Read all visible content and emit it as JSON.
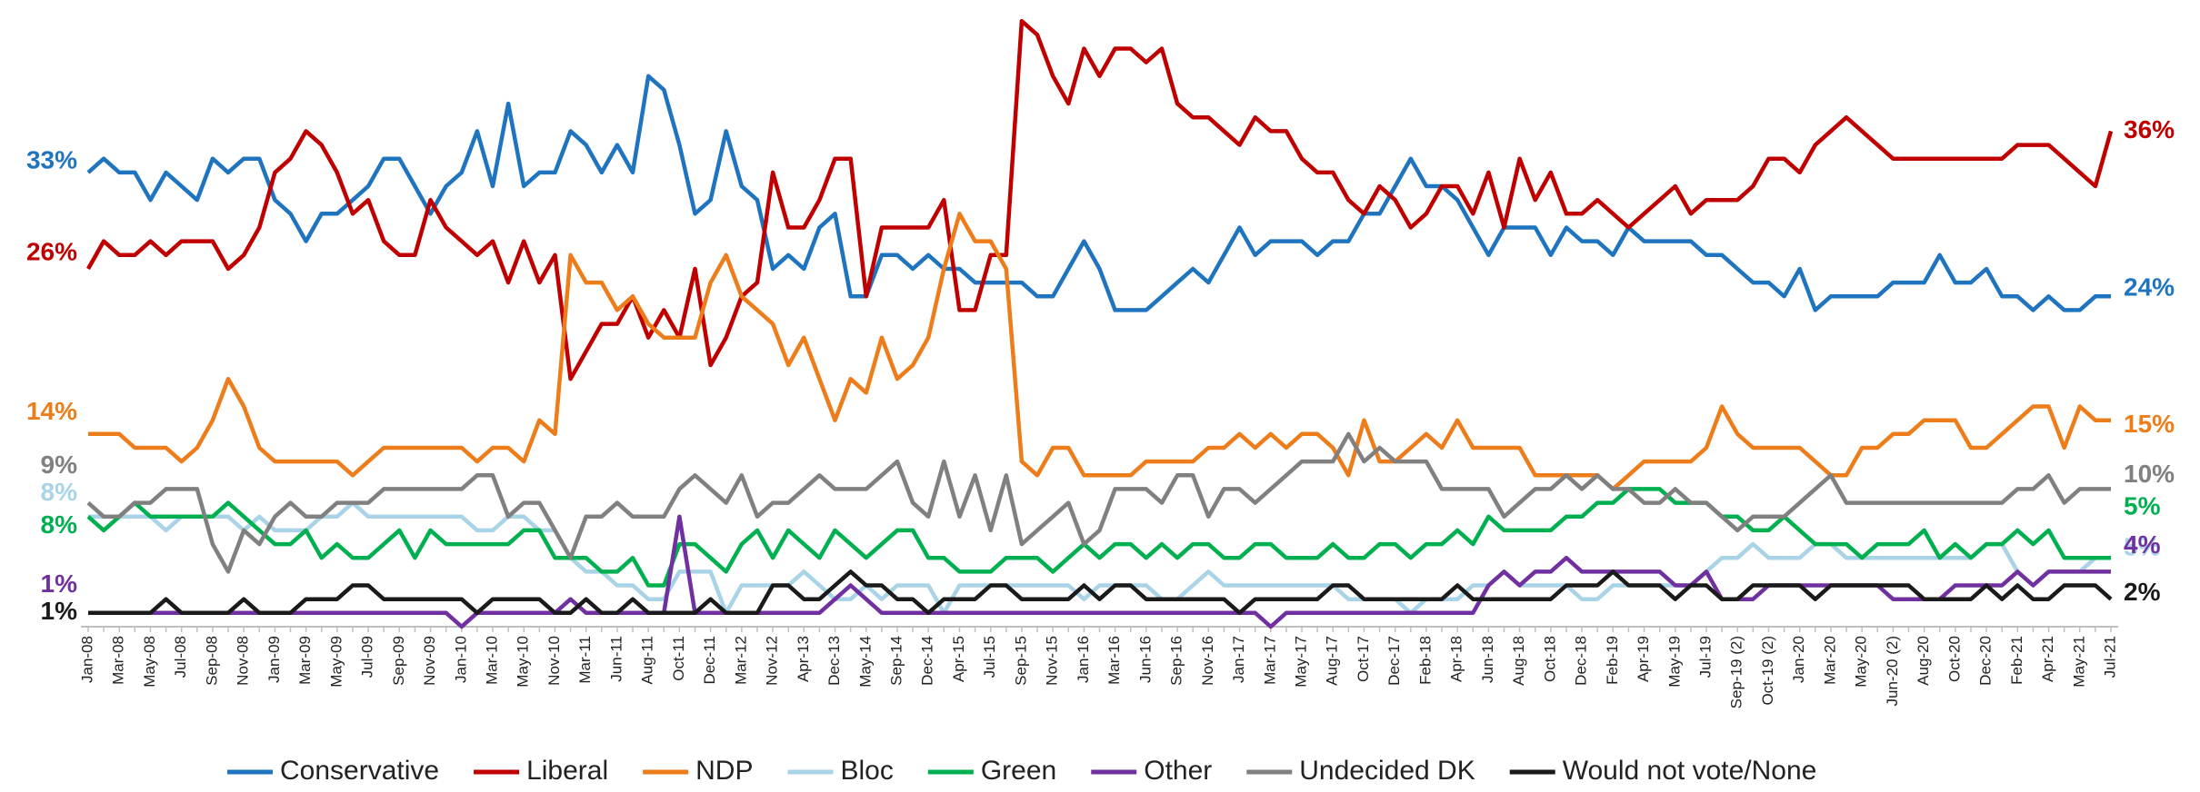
{
  "chart_data": {
    "type": "line",
    "ylim": [
      0,
      45
    ],
    "categories": [
      "Jan-08",
      null,
      "Mar-08",
      null,
      "May-08",
      null,
      "Jul-08",
      null,
      "Sep-08",
      null,
      "Nov-08",
      null,
      "Jan-09",
      null,
      "Mar-09",
      null,
      "May-09",
      null,
      "Jul-09",
      null,
      "Sep-09",
      null,
      "Nov-09",
      null,
      "Jan-10",
      null,
      "Mar-10",
      null,
      "May-10",
      null,
      "Nov-10",
      null,
      "Mar-11",
      null,
      "Jun-11",
      null,
      "Aug-11",
      null,
      "Oct-11",
      null,
      "Dec-11",
      null,
      "Mar-12",
      null,
      "Nov-12",
      null,
      "Apr-13",
      null,
      "Dec-13",
      null,
      "May-14",
      null,
      "Sep-14",
      null,
      "Dec-14",
      null,
      "Apr-15",
      null,
      "Jul-15",
      null,
      "Sep-15",
      null,
      "Nov-15",
      null,
      "Jan-16",
      null,
      "Mar-16",
      null,
      "Jun-16",
      null,
      "Sep-16",
      null,
      "Nov-16",
      null,
      "Jan-17",
      null,
      "Mar-17",
      null,
      "May-17",
      null,
      "Aug-17",
      null,
      "Oct-17",
      null,
      "Dec-17",
      null,
      "Feb-18",
      null,
      "Apr-18",
      null,
      "Jun-18",
      null,
      "Aug-18",
      null,
      "Oct-18",
      null,
      "Dec-18",
      null,
      "Feb-19",
      null,
      "Apr-19",
      null,
      "May-19",
      null,
      "Jul-19",
      null,
      "Sep-19 (2)",
      null,
      "Oct-19 (2)",
      null,
      "Jan-20",
      null,
      "Mar-20",
      null,
      "May-20",
      null,
      "Jun-20 (2)",
      null,
      "Aug-20",
      null,
      "Oct-20",
      null,
      "Dec-20",
      null,
      "Feb-21",
      null,
      "Apr-21",
      null,
      "May-21",
      null,
      "Jul-21"
    ],
    "series": [
      {
        "name": "Conservative",
        "color": "#1f74bf",
        "start_label": "33%",
        "end_label": "24%",
        "values": [
          33,
          34,
          33,
          33,
          31,
          33,
          32,
          31,
          34,
          33,
          34,
          34,
          31,
          30,
          28,
          30,
          30,
          31,
          32,
          34,
          34,
          32,
          30,
          32,
          33,
          36,
          32,
          38,
          32,
          33,
          33,
          36,
          35,
          33,
          35,
          33,
          40,
          39,
          35,
          30,
          31,
          36,
          32,
          31,
          26,
          27,
          26,
          29,
          30,
          24,
          24,
          27,
          27,
          26,
          27,
          26,
          26,
          25,
          25,
          25,
          25,
          24,
          24,
          26,
          28,
          26,
          23,
          23,
          23,
          24,
          25,
          26,
          25,
          27,
          29,
          27,
          28,
          28,
          28,
          27,
          28,
          28,
          30,
          30,
          32,
          34,
          32,
          32,
          31,
          29,
          27,
          29,
          29,
          29,
          27,
          29,
          28,
          28,
          27,
          29,
          28,
          28,
          28,
          28,
          27,
          27,
          26,
          25,
          25,
          24,
          26,
          23,
          24,
          24,
          24,
          24,
          25,
          25,
          25,
          27,
          25,
          25,
          26,
          24,
          24,
          23,
          24,
          23,
          23,
          24,
          24
        ]
      },
      {
        "name": "Liberal",
        "color": "#c00000",
        "start_label": "26%",
        "end_label": "36%",
        "values": [
          26,
          28,
          27,
          27,
          28,
          27,
          28,
          28,
          28,
          26,
          27,
          29,
          33,
          34,
          36,
          35,
          33,
          30,
          31,
          28,
          27,
          27,
          31,
          29,
          28,
          27,
          28,
          25,
          28,
          25,
          27,
          18,
          20,
          22,
          22,
          24,
          21,
          23,
          21,
          26,
          19,
          21,
          24,
          25,
          33,
          29,
          29,
          31,
          34,
          34,
          24,
          29,
          29,
          29,
          29,
          31,
          23,
          23,
          27,
          27,
          44,
          43,
          40,
          38,
          42,
          40,
          42,
          42,
          41,
          42,
          38,
          37,
          37,
          36,
          35,
          37,
          36,
          36,
          34,
          33,
          33,
          31,
          30,
          32,
          31,
          29,
          30,
          32,
          32,
          30,
          33,
          29,
          34,
          31,
          33,
          30,
          30,
          31,
          30,
          29,
          30,
          31,
          32,
          30,
          31,
          31,
          31,
          32,
          34,
          34,
          33,
          35,
          36,
          37,
          36,
          35,
          34,
          34,
          34,
          34,
          34,
          34,
          34,
          34,
          35,
          35,
          35,
          34,
          33,
          32,
          36
        ]
      },
      {
        "name": "NDP",
        "color": "#ed7d1a",
        "start_label": "14%",
        "end_label": "15%",
        "values": [
          14,
          14,
          14,
          13,
          13,
          13,
          12,
          13,
          15,
          18,
          16,
          13,
          12,
          12,
          12,
          12,
          12,
          11,
          12,
          13,
          13,
          13,
          13,
          13,
          13,
          12,
          13,
          13,
          12,
          15,
          14,
          27,
          25,
          25,
          23,
          24,
          22,
          21,
          21,
          21,
          25,
          27,
          24,
          23,
          22,
          19,
          21,
          18,
          15,
          18,
          17,
          21,
          18,
          19,
          21,
          26,
          30,
          28,
          28,
          26,
          12,
          11,
          13,
          13,
          11,
          11,
          11,
          11,
          12,
          12,
          12,
          12,
          13,
          13,
          14,
          13,
          14,
          13,
          14,
          14,
          13,
          11,
          15,
          12,
          12,
          13,
          14,
          13,
          15,
          13,
          13,
          13,
          13,
          11,
          11,
          11,
          11,
          11,
          10,
          11,
          12,
          12,
          12,
          12,
          13,
          16,
          14,
          13,
          13,
          13,
          13,
          12,
          11,
          11,
          13,
          13,
          14,
          14,
          15,
          15,
          15,
          13,
          13,
          14,
          15,
          16,
          16,
          13,
          16,
          15,
          15
        ]
      },
      {
        "name": "Bloc",
        "color": "#a9d3e6",
        "start_label": "8%",
        "end_label": "5%",
        "values": [
          8,
          8,
          8,
          8,
          8,
          7,
          8,
          8,
          8,
          8,
          7,
          8,
          7,
          7,
          7,
          8,
          8,
          9,
          8,
          8,
          8,
          8,
          8,
          8,
          8,
          7,
          7,
          8,
          8,
          7,
          7,
          5,
          4,
          4,
          3,
          3,
          2,
          2,
          4,
          4,
          4,
          1,
          3,
          3,
          3,
          3,
          4,
          3,
          2,
          2,
          3,
          2,
          3,
          3,
          3,
          1,
          3,
          3,
          3,
          3,
          3,
          3,
          3,
          3,
          2,
          3,
          3,
          3,
          3,
          2,
          2,
          3,
          4,
          3,
          3,
          3,
          3,
          3,
          3,
          3,
          3,
          2,
          2,
          2,
          2,
          1,
          2,
          2,
          2,
          3,
          3,
          4,
          3,
          3,
          3,
          3,
          2,
          2,
          3,
          3,
          3,
          3,
          3,
          3,
          4,
          5,
          5,
          6,
          5,
          5,
          5,
          6,
          6,
          5,
          5,
          5,
          5,
          5,
          5,
          5,
          5,
          5,
          6,
          6,
          4,
          3,
          4,
          4,
          4,
          5,
          5
        ]
      },
      {
        "name": "Green",
        "color": "#00b050",
        "start_label": "8%",
        "end_label": "5%",
        "values": [
          8,
          7,
          8,
          9,
          8,
          8,
          8,
          8,
          8,
          9,
          8,
          7,
          6,
          6,
          7,
          5,
          6,
          5,
          5,
          6,
          7,
          5,
          7,
          6,
          6,
          6,
          6,
          6,
          7,
          7,
          5,
          5,
          5,
          4,
          4,
          5,
          3,
          3,
          6,
          6,
          5,
          4,
          6,
          7,
          5,
          7,
          6,
          5,
          7,
          6,
          5,
          6,
          7,
          7,
          5,
          5,
          4,
          4,
          4,
          5,
          5,
          5,
          4,
          5,
          6,
          5,
          6,
          6,
          5,
          6,
          5,
          6,
          6,
          5,
          5,
          6,
          6,
          5,
          5,
          5,
          6,
          5,
          5,
          6,
          6,
          5,
          6,
          6,
          7,
          6,
          8,
          7,
          7,
          7,
          7,
          8,
          8,
          9,
          9,
          10,
          10,
          10,
          9,
          9,
          9,
          8,
          8,
          7,
          7,
          8,
          7,
          6,
          6,
          6,
          5,
          6,
          6,
          6,
          7,
          5,
          6,
          5,
          6,
          6,
          7,
          6,
          7,
          5,
          5,
          5,
          5
        ]
      },
      {
        "name": "Other",
        "color": "#7030a0",
        "start_label": "1%",
        "end_label": "4%",
        "values": [
          1,
          1,
          1,
          1,
          1,
          1,
          1,
          1,
          1,
          1,
          1,
          1,
          1,
          1,
          1,
          1,
          1,
          1,
          1,
          1,
          1,
          1,
          1,
          1,
          0,
          1,
          1,
          1,
          1,
          1,
          1,
          2,
          1,
          1,
          1,
          1,
          1,
          1,
          8,
          1,
          1,
          1,
          1,
          1,
          1,
          1,
          1,
          1,
          2,
          3,
          2,
          1,
          1,
          1,
          1,
          1,
          1,
          1,
          1,
          1,
          1,
          1,
          1,
          1,
          1,
          1,
          1,
          1,
          1,
          1,
          1,
          1,
          1,
          1,
          1,
          1,
          0,
          1,
          1,
          1,
          1,
          1,
          1,
          1,
          1,
          1,
          1,
          1,
          1,
          1,
          3,
          4,
          3,
          4,
          4,
          5,
          4,
          4,
          4,
          4,
          4,
          4,
          3,
          3,
          4,
          2,
          2,
          2,
          3,
          3,
          3,
          3,
          3,
          3,
          3,
          3,
          2,
          2,
          2,
          2,
          3,
          3,
          3,
          3,
          4,
          3,
          4,
          4,
          4,
          4,
          4
        ]
      },
      {
        "name": "Undecided DK",
        "color": "#808080",
        "start_label": "9%",
        "end_label": "10%",
        "values": [
          9,
          8,
          8,
          9,
          9,
          10,
          10,
          10,
          6,
          4,
          7,
          6,
          8,
          9,
          8,
          8,
          9,
          9,
          9,
          10,
          10,
          10,
          10,
          10,
          10,
          11,
          11,
          8,
          9,
          9,
          7,
          5,
          8,
          8,
          9,
          8,
          8,
          8,
          10,
          11,
          10,
          9,
          11,
          8,
          9,
          9,
          10,
          11,
          10,
          10,
          10,
          11,
          12,
          9,
          8,
          12,
          8,
          11,
          7,
          11,
          6,
          7,
          8,
          9,
          6,
          7,
          10,
          10,
          10,
          9,
          11,
          11,
          8,
          10,
          10,
          9,
          10,
          11,
          12,
          12,
          12,
          14,
          12,
          13,
          12,
          12,
          12,
          10,
          10,
          10,
          10,
          8,
          9,
          10,
          10,
          11,
          10,
          11,
          10,
          10,
          9,
          9,
          10,
          9,
          9,
          8,
          7,
          8,
          8,
          8,
          9,
          10,
          11,
          9,
          9,
          9,
          9,
          9,
          9,
          9,
          9,
          9,
          9,
          9,
          10,
          10,
          11,
          9,
          10,
          10,
          10
        ]
      },
      {
        "name": "Would not vote/None",
        "color": "#1a1a1a",
        "start_label": "1%",
        "end_label": "2%",
        "values": [
          1,
          1,
          1,
          1,
          1,
          2,
          1,
          1,
          1,
          1,
          2,
          1,
          1,
          1,
          2,
          2,
          2,
          3,
          3,
          2,
          2,
          2,
          2,
          2,
          2,
          1,
          2,
          2,
          2,
          2,
          1,
          1,
          2,
          1,
          1,
          2,
          1,
          1,
          1,
          1,
          2,
          1,
          1,
          1,
          3,
          3,
          2,
          2,
          3,
          4,
          3,
          3,
          2,
          2,
          1,
          2,
          2,
          2,
          3,
          3,
          2,
          2,
          2,
          2,
          3,
          2,
          3,
          3,
          2,
          2,
          2,
          2,
          2,
          2,
          1,
          2,
          2,
          2,
          2,
          2,
          3,
          3,
          2,
          2,
          2,
          2,
          2,
          2,
          3,
          2,
          2,
          2,
          2,
          2,
          2,
          3,
          3,
          3,
          4,
          3,
          3,
          3,
          2,
          3,
          3,
          2,
          2,
          3,
          3,
          3,
          3,
          2,
          3,
          3,
          3,
          3,
          3,
          3,
          2,
          2,
          2,
          2,
          3,
          2,
          3,
          2,
          2,
          3,
          3,
          3,
          2
        ]
      }
    ]
  }
}
